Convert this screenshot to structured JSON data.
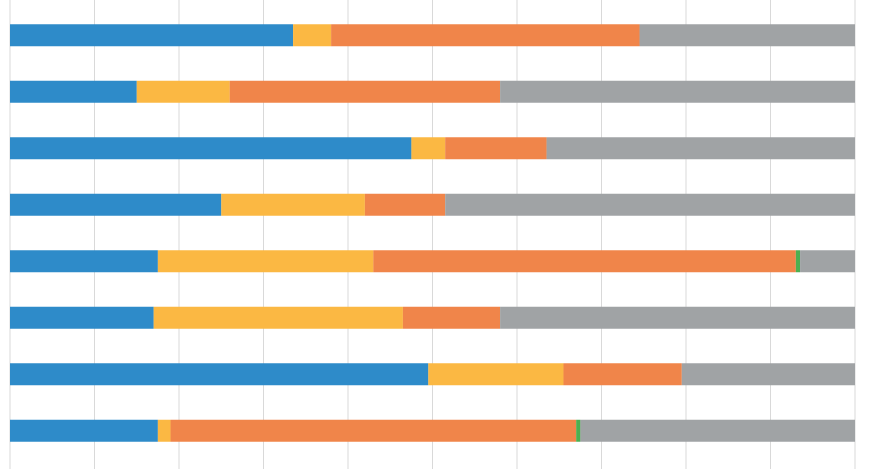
{
  "chart_data": {
    "type": "stacked-barh",
    "xlim": [
      0,
      100
    ],
    "xticks": [
      0,
      10,
      20,
      30,
      40,
      50,
      60,
      70,
      80,
      90,
      100
    ],
    "grid": true,
    "series": [
      {
        "color": "#2e8bc9",
        "values": [
          33.5,
          15,
          47.5,
          25,
          17.5,
          17,
          49.5,
          17.5
        ]
      },
      {
        "color": "#fbb843",
        "values": [
          4.5,
          11,
          4,
          17,
          25.5,
          29.5,
          16,
          1.5
        ]
      },
      {
        "color": "#f0854a",
        "values": [
          36.5,
          32,
          12,
          9.5,
          50,
          11.5,
          14,
          48
        ]
      },
      {
        "color": "#4caf50",
        "values": [
          0,
          0,
          0,
          0,
          0.5,
          0,
          0,
          0.5
        ]
      },
      {
        "color": "#a0a3a5",
        "values": [
          25.5,
          42,
          36.5,
          48.5,
          6.5,
          42,
          20.5,
          32.5
        ]
      }
    ]
  }
}
